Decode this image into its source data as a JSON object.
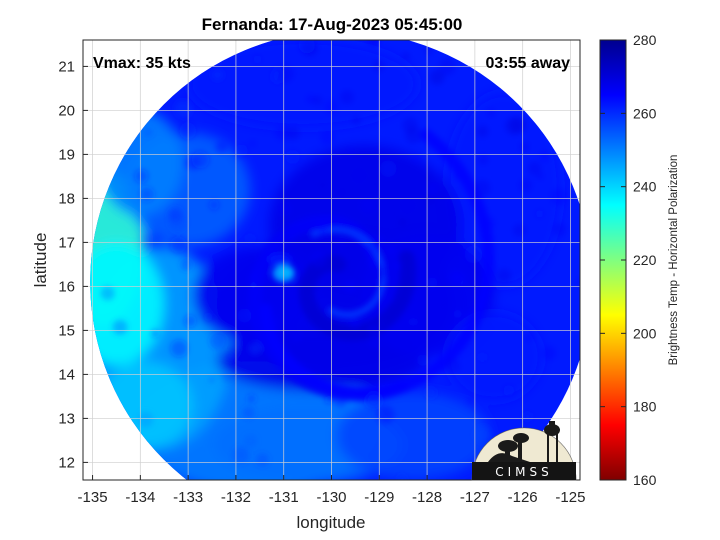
{
  "title": "Fernanda: 17-Aug-2023 05:45:00",
  "annotations": {
    "vmax": "Vmax: 35 kts",
    "away": "03:55 away"
  },
  "logo_text": "CIMSS",
  "chart_data": {
    "type": "heatmap",
    "xlabel": "longitude",
    "ylabel": "latitude",
    "xlim": [
      -135.2,
      -124.8
    ],
    "ylim": [
      11.6,
      21.6
    ],
    "xticks": [
      -135,
      -134,
      -133,
      -132,
      -131,
      -130,
      -129,
      -128,
      -127,
      -126,
      -125
    ],
    "yticks": [
      12,
      13,
      14,
      15,
      16,
      17,
      18,
      19,
      20,
      21
    ],
    "grid": true,
    "colorbar": {
      "label": "Brightness Temp - Horizontal Polarization",
      "range": [
        160,
        280
      ],
      "ticks": [
        160,
        180,
        200,
        220,
        240,
        260,
        280
      ],
      "colormap": [
        "#7f0000",
        "#ff0000",
        "#ff8000",
        "#ffff00",
        "#80ff80",
        "#00ffff",
        "#0080ff",
        "#0000ff",
        "#00008f"
      ]
    },
    "feature": {
      "center_lon": -129.8,
      "center_lat": 16.1,
      "swath_radius_deg": 5.25,
      "warm_spot": {
        "lon": -131.0,
        "lat": 16.3,
        "value": 248
      },
      "min_temp": 268,
      "max_temp_west_edge": 228
    }
  }
}
